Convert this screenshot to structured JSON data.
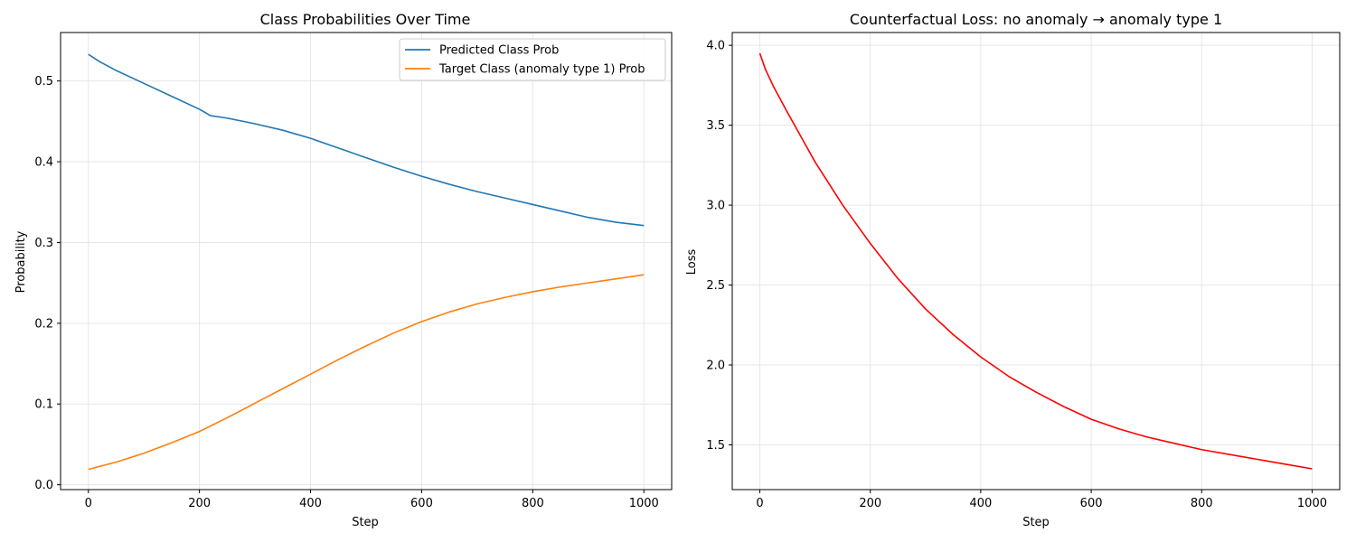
{
  "chart_data": [
    {
      "type": "line",
      "title": "Class Probabilities Over Time",
      "xlabel": "Step",
      "ylabel": "Probability",
      "xlim": [
        -50,
        1050
      ],
      "ylim": [
        -0.006,
        0.56
      ],
      "xticks": [
        0,
        200,
        400,
        600,
        800,
        1000
      ],
      "yticks": [
        0.0,
        0.1,
        0.2,
        0.3,
        0.4,
        0.5
      ],
      "ytick_labels": [
        "0.0",
        "0.1",
        "0.2",
        "0.3",
        "0.4",
        "0.5"
      ],
      "grid": true,
      "legend_position": "top-right",
      "series": [
        {
          "name": "Predicted Class Prob",
          "color": "#1f77b4",
          "x": [
            0,
            20,
            50,
            100,
            150,
            200,
            220,
            250,
            300,
            350,
            400,
            450,
            500,
            550,
            600,
            650,
            700,
            750,
            800,
            850,
            900,
            950,
            1000
          ],
          "y": [
            0.533,
            0.524,
            0.513,
            0.497,
            0.481,
            0.465,
            0.457,
            0.454,
            0.447,
            0.439,
            0.429,
            0.417,
            0.405,
            0.393,
            0.382,
            0.372,
            0.363,
            0.355,
            0.347,
            0.339,
            0.331,
            0.325,
            0.321
          ]
        },
        {
          "name": "Target Class (anomaly type 1) Prob",
          "color": "#ff7f0e",
          "x": [
            0,
            50,
            100,
            150,
            200,
            250,
            300,
            350,
            400,
            450,
            500,
            550,
            600,
            650,
            700,
            750,
            800,
            850,
            900,
            950,
            1000
          ],
          "y": [
            0.019,
            0.028,
            0.039,
            0.052,
            0.066,
            0.083,
            0.101,
            0.119,
            0.137,
            0.155,
            0.172,
            0.188,
            0.202,
            0.214,
            0.224,
            0.232,
            0.239,
            0.245,
            0.25,
            0.255,
            0.26
          ]
        }
      ]
    },
    {
      "type": "line",
      "title": "Counterfactual Loss: no anomaly → anomaly type 1",
      "xlabel": "Step",
      "ylabel": "Loss",
      "xlim": [
        -50,
        1050
      ],
      "ylim": [
        1.22,
        4.08
      ],
      "xticks": [
        0,
        200,
        400,
        600,
        800,
        1000
      ],
      "yticks": [
        1.5,
        2.0,
        2.5,
        3.0,
        3.5,
        4.0
      ],
      "ytick_labels": [
        "1.5",
        "2.0",
        "2.5",
        "3.0",
        "3.5",
        "4.0"
      ],
      "grid": true,
      "series": [
        {
          "color": "#ff0000",
          "x": [
            0,
            10,
            25,
            50,
            100,
            150,
            200,
            250,
            300,
            350,
            400,
            450,
            500,
            550,
            600,
            650,
            700,
            750,
            800,
            850,
            900,
            950,
            1000
          ],
          "y": [
            3.95,
            3.85,
            3.74,
            3.58,
            3.27,
            3.0,
            2.76,
            2.54,
            2.35,
            2.19,
            2.05,
            1.93,
            1.83,
            1.74,
            1.66,
            1.6,
            1.55,
            1.51,
            1.47,
            1.44,
            1.41,
            1.38,
            1.35
          ]
        }
      ]
    }
  ]
}
